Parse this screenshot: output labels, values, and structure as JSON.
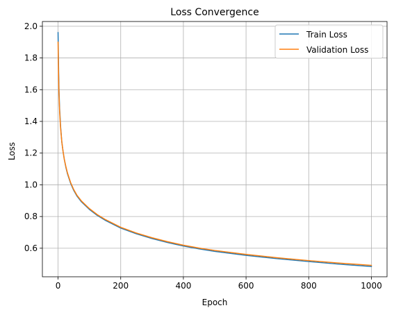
{
  "chart_data": {
    "type": "line",
    "title": "Loss Convergence",
    "xlabel": "Epoch",
    "ylabel": "Loss",
    "xlim": [
      -50,
      1050
    ],
    "ylim": [
      0.42,
      2.03
    ],
    "x_ticks": [
      0,
      200,
      400,
      600,
      800,
      1000
    ],
    "y_ticks": [
      0.6,
      0.8,
      1.0,
      1.2,
      1.4,
      1.6,
      1.8,
      2.0
    ],
    "x_tick_labels": [
      "0",
      "200",
      "400",
      "600",
      "800",
      "1000"
    ],
    "y_tick_labels": [
      "0.6",
      "0.8",
      "1.0",
      "1.2",
      "1.4",
      "1.6",
      "1.8",
      "2.0"
    ],
    "grid": true,
    "legend_position": "top-right",
    "series": [
      {
        "name": "Train Loss",
        "color": "#1f77b4",
        "x": [
          0,
          1,
          2,
          3,
          5,
          8,
          12,
          16,
          20,
          25,
          30,
          40,
          50,
          60,
          75,
          100,
          125,
          150,
          200,
          250,
          300,
          350,
          400,
          450,
          500,
          600,
          700,
          800,
          900,
          1000
        ],
        "values": [
          1.96,
          1.82,
          1.7,
          1.6,
          1.48,
          1.37,
          1.27,
          1.21,
          1.16,
          1.11,
          1.07,
          1.01,
          0.965,
          0.93,
          0.892,
          0.845,
          0.807,
          0.777,
          0.727,
          0.691,
          0.661,
          0.636,
          0.614,
          0.596,
          0.58,
          0.555,
          0.534,
          0.516,
          0.499,
          0.485
        ]
      },
      {
        "name": "Validation Loss",
        "color": "#ff7f0e",
        "x": [
          0,
          1,
          2,
          3,
          5,
          8,
          12,
          16,
          20,
          25,
          30,
          40,
          50,
          60,
          75,
          100,
          125,
          150,
          200,
          250,
          300,
          350,
          400,
          450,
          500,
          600,
          700,
          800,
          900,
          1000
        ],
        "values": [
          1.9,
          1.76,
          1.66,
          1.57,
          1.46,
          1.36,
          1.27,
          1.21,
          1.16,
          1.115,
          1.075,
          1.015,
          0.97,
          0.935,
          0.897,
          0.85,
          0.812,
          0.782,
          0.732,
          0.696,
          0.666,
          0.641,
          0.619,
          0.601,
          0.586,
          0.561,
          0.54,
          0.522,
          0.506,
          0.492
        ]
      }
    ]
  }
}
